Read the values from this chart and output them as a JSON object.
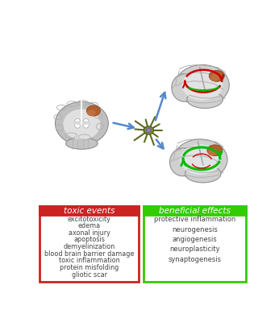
{
  "background_color": "#ffffff",
  "toxic_title": "toxic events",
  "toxic_items": [
    "excitotoxicity",
    "edema",
    "axonal injury",
    "apoptosis",
    "demyelinization",
    "blood brain barrier damage",
    "toxic inflammation",
    "protein misfolding",
    "gliotic scar"
  ],
  "beneficial_title": "beneficial effects",
  "beneficial_items": [
    "protective inflammation",
    "neurogenesis",
    "angiogenesis",
    "neuroplasticity",
    "synaptogenesis"
  ],
  "toxic_header_color": "#cc2222",
  "toxic_border_color": "#cc2222",
  "beneficial_header_color": "#33cc00",
  "beneficial_border_color": "#33cc00",
  "text_color": "#444444",
  "header_text_color": "#ffffff",
  "arrow_color": "#5588cc",
  "red_arrow_color": "#cc0000",
  "green_arrow_color": "#00bb00",
  "brain_base": "#c8c8c8",
  "brain_light": "#e8e8e8",
  "brain_dark": "#a0a0a0",
  "injury_color": "#b06030",
  "gyri_color": "#b0b0b0"
}
